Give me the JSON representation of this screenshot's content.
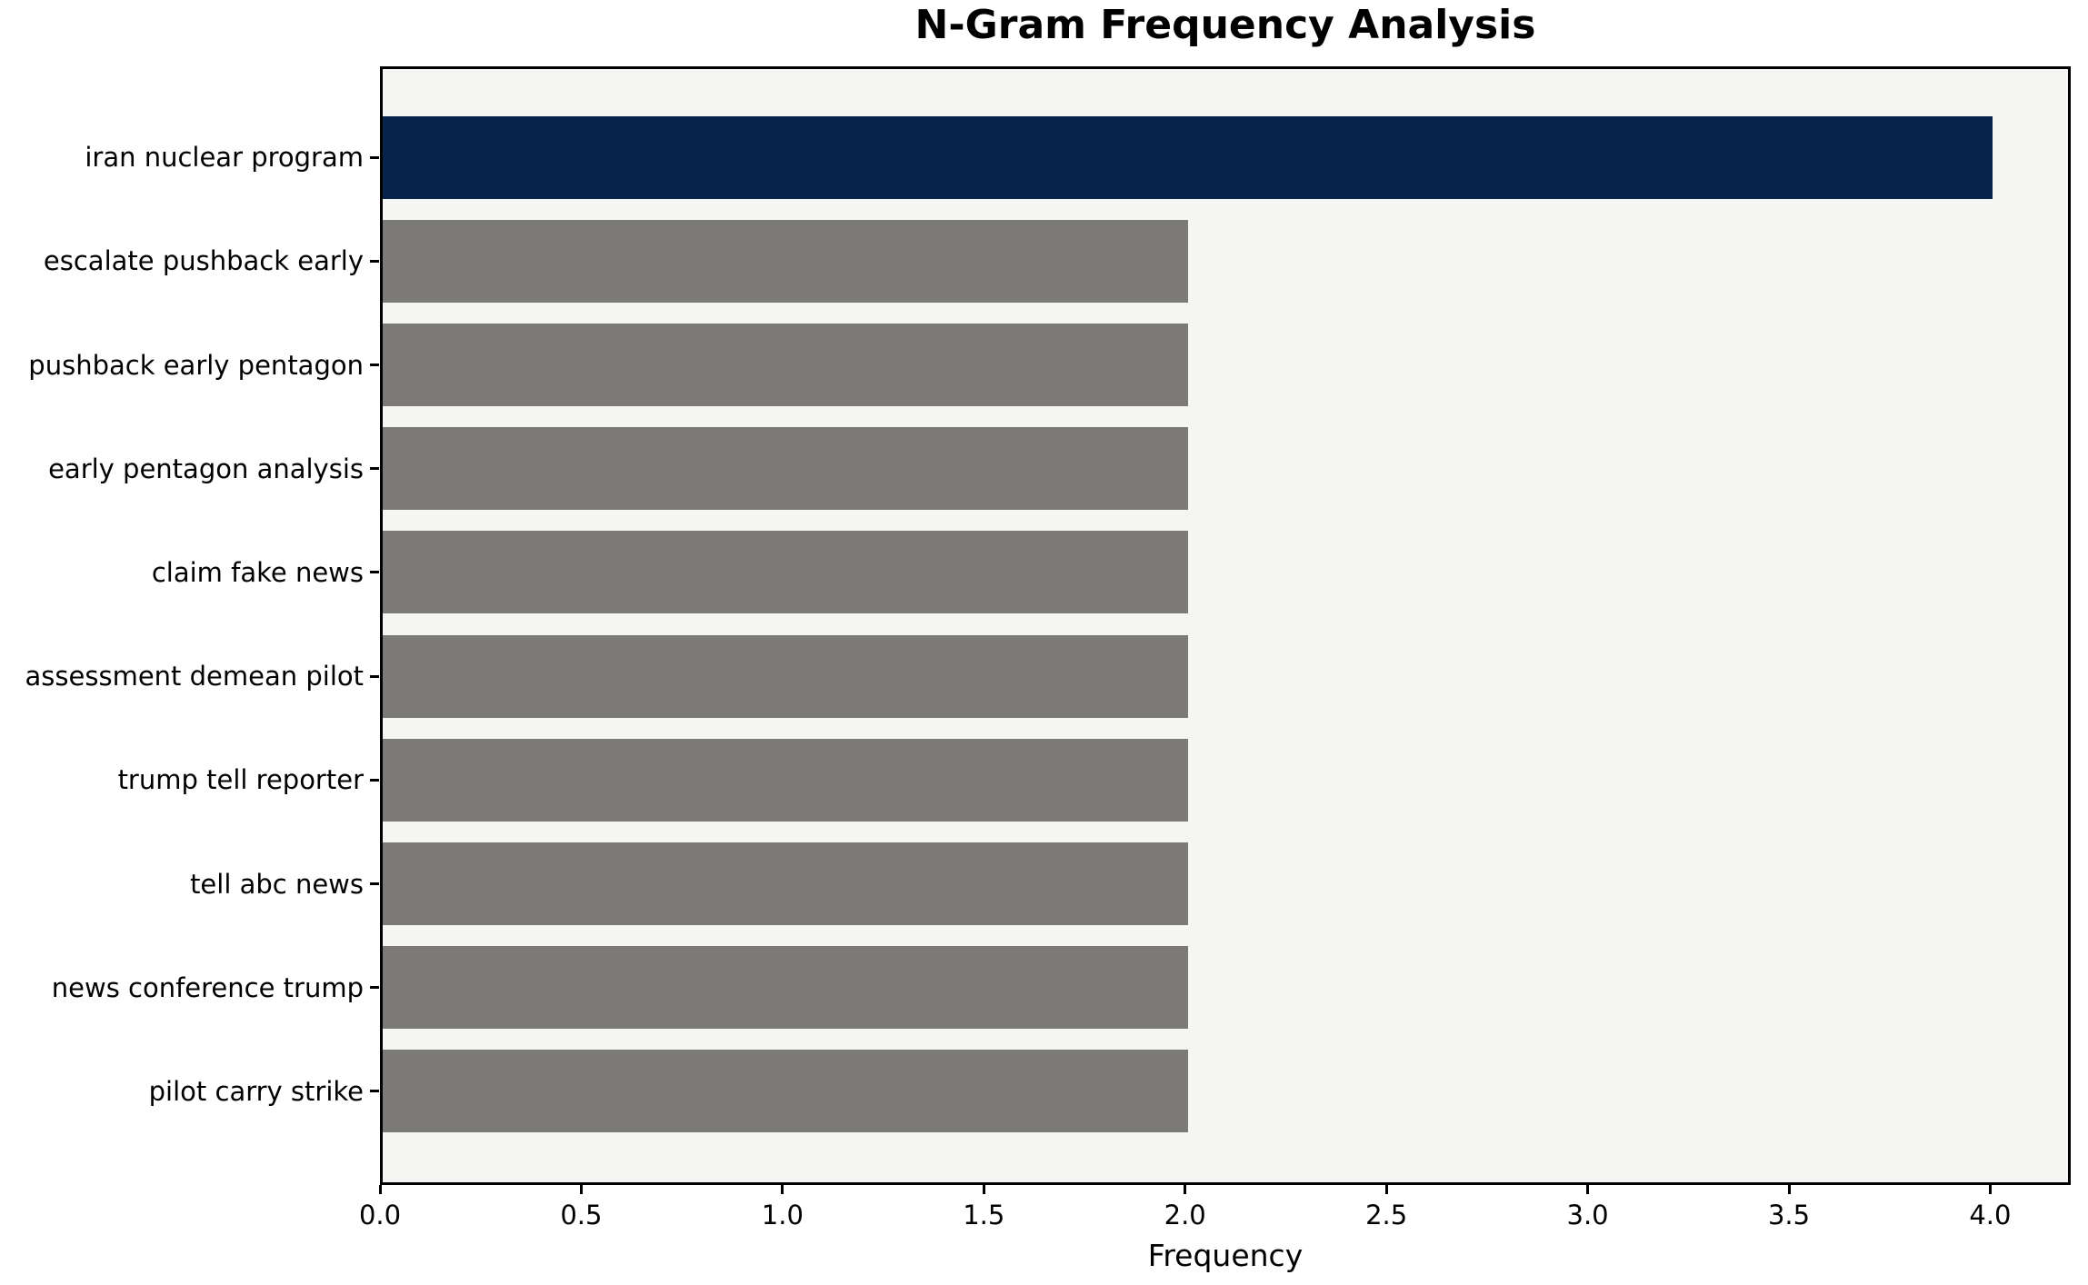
{
  "title": "N-Gram Frequency Analysis",
  "chart_data": {
    "type": "bar",
    "orientation": "horizontal",
    "title": "N-Gram Frequency Analysis",
    "categories": [
      "iran nuclear program",
      "escalate pushback early",
      "pushback early pentagon",
      "early pentagon analysis",
      "claim fake news",
      "assessment demean pilot",
      "trump tell reporter",
      "tell abc news",
      "news conference trump",
      "pilot carry strike"
    ],
    "values": [
      4,
      2,
      2,
      2,
      2,
      2,
      2,
      2,
      2,
      2
    ],
    "xlabel": "Frequency",
    "ylabel": "",
    "xlim": [
      0,
      4.2
    ],
    "xticks": [
      0,
      0.5,
      1,
      1.5,
      2,
      2.5,
      3,
      3.5,
      4
    ],
    "xtick_labels": [
      "0.0",
      "0.5",
      "1.0",
      "1.5",
      "2.0",
      "2.5",
      "3.0",
      "3.5",
      "4.0"
    ],
    "grid": false,
    "legend": null,
    "colors": {
      "highlight_bar": "#06234b",
      "default_bar": "#7b7a78",
      "plot_background": "#f5f5f4",
      "figure_background": "#ffffff",
      "spine": "#000000",
      "text": "#000000"
    },
    "highlight_index": 0
  }
}
